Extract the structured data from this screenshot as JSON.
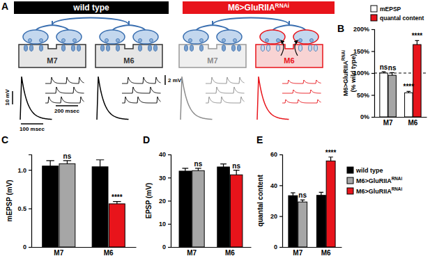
{
  "diagram": {
    "panel": "A",
    "groups": [
      {
        "label": "wild type",
        "color": "#000000"
      },
      {
        "label": "M6>GluRIIA",
        "label_sup": "RNAi",
        "color": "#e8141b"
      }
    ],
    "muscles": [
      {
        "label": "M7",
        "color": "#000000"
      },
      {
        "label": "M6",
        "color": "#000000"
      },
      {
        "label": "M7",
        "color": "#8c8c8c"
      },
      {
        "label": "M6",
        "color": "#e8141b"
      }
    ],
    "scale_bars": {
      "epsp_voltage": "10 mV",
      "epsp_time": "100 msec",
      "mepsp_voltage": "2 mV",
      "mepsp_time": "200 msec"
    }
  },
  "chart_data": [
    {
      "panel": "B",
      "type": "bar",
      "categories": [
        "M7",
        "M6"
      ],
      "y_label": "M6>GluRIIA",
      "y_label_sup": "RNAi",
      "y_label_2": "(% wild type)",
      "ylim": [
        0,
        200
      ],
      "yticks": [
        {
          "value": 0,
          "label": "0%"
        },
        {
          "value": 50,
          "label": "50%"
        },
        {
          "value": 100,
          "label": "100%"
        },
        {
          "value": 150,
          "label": "150%"
        },
        {
          "value": 200,
          "label": "200%"
        }
      ],
      "reference_line": 100,
      "legend": "upper right",
      "series": [
        {
          "name": "mEPSP",
          "color": "#ffffff",
          "values": [
            100,
            55
          ],
          "errors": [
            3,
            3
          ],
          "annotations": [
            "ns",
            "****"
          ]
        },
        {
          "name": "quantal content",
          "color": "#e8141b",
          "colors": [
            "#a6a6a6",
            "#e8141b"
          ],
          "values": [
            95,
            165
          ],
          "errors": [
            6,
            9
          ],
          "annotations": [
            "ns",
            "****"
          ]
        }
      ]
    },
    {
      "panel": "C",
      "type": "bar",
      "categories": [
        "M7",
        "M6"
      ],
      "y_label": "mEPSP (mV)",
      "ylim": [
        0,
        1.2
      ],
      "yticks": [
        0,
        0.5,
        {
          "value": 1,
          "label": "1.0"
        }
      ],
      "series": [
        {
          "name": "wild type",
          "color": "#000000",
          "values": [
            1.05,
            1.04
          ],
          "errors": [
            0.07,
            0.09
          ]
        },
        {
          "name": "M6>GluRIIA",
          "name_sup": "RNAi",
          "color": "#a6a6a6",
          "values": [
            1.08,
            null
          ],
          "errors": [
            0.04,
            null
          ],
          "annotations": [
            "ns",
            null
          ]
        },
        {
          "name": "M6>GluRIIA",
          "name_sup": "RNAi",
          "color": "#e8141b",
          "values": [
            null,
            0.56
          ],
          "errors": [
            null,
            0.03
          ],
          "annotations": [
            null,
            "****"
          ]
        }
      ]
    },
    {
      "panel": "D",
      "type": "bar",
      "categories": [
        "M7",
        "M6"
      ],
      "y_label": "EPSP (mV)",
      "ylim": [
        0,
        40
      ],
      "yticks": [
        0,
        10,
        20,
        30,
        40
      ],
      "series": [
        {
          "name": "wild type",
          "color": "#000000",
          "values": [
            32.8,
            34.6
          ],
          "errors": [
            1.2,
            1.3
          ]
        },
        {
          "name": "M6>GluRIIA",
          "name_sup": "RNAi",
          "color": "#a6a6a6",
          "values": [
            33,
            null
          ],
          "errors": [
            1,
            null
          ],
          "annotations": [
            "ns",
            null
          ]
        },
        {
          "name": "M6>GluRIIA",
          "name_sup": "RNAi",
          "color": "#e8141b",
          "values": [
            null,
            31.2
          ],
          "errors": [
            null,
            2
          ],
          "annotations": [
            null,
            "ns"
          ]
        }
      ]
    },
    {
      "panel": "E",
      "type": "bar",
      "categories": [
        "M7",
        "M6"
      ],
      "y_label": "quantal content",
      "ylim": [
        0,
        60
      ],
      "yticks": [
        0,
        20,
        40,
        60
      ],
      "legend": "right",
      "series": [
        {
          "name": "wild type",
          "color": "#000000",
          "values": [
            33.3,
            33.5
          ],
          "errors": [
            1.8,
            2
          ]
        },
        {
          "name": "M6>GluRIIA",
          "name_sup": "RNAi",
          "color": "#a6a6a6",
          "values": [
            29.2,
            null
          ],
          "errors": [
            1.3,
            null
          ],
          "annotations": [
            "ns",
            null
          ]
        },
        {
          "name": "M6>GluRIIA",
          "name_sup": "RNAi",
          "color": "#e8141b",
          "values": [
            null,
            55.8
          ],
          "errors": [
            null,
            2.5
          ],
          "annotations": [
            null,
            "****"
          ]
        }
      ]
    }
  ]
}
